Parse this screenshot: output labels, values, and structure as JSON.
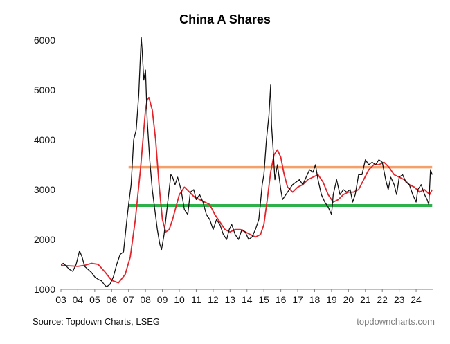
{
  "chart_data": {
    "type": "line",
    "title": "China A Shares",
    "source": "Source: Topdown Charts, LSEG",
    "brand": "topdowncharts.com",
    "xlabel": "",
    "ylabel": "",
    "xlim": [
      2003.0,
      2024.98
    ],
    "ylim": [
      1000,
      6000
    ],
    "yticks": [
      1000,
      2000,
      3000,
      4000,
      5000,
      6000
    ],
    "xtick_labels": [
      "03",
      "04",
      "05",
      "06",
      "07",
      "08",
      "09",
      "10",
      "11",
      "12",
      "13",
      "14",
      "15",
      "16",
      "17",
      "18",
      "19",
      "20",
      "21",
      "22",
      "23",
      "24"
    ],
    "xtick_values": [
      2003,
      2004,
      2005,
      2006,
      2007,
      2008,
      2009,
      2010,
      2011,
      2012,
      2013,
      2014,
      2015,
      2016,
      2017,
      2018,
      2019,
      2020,
      2021,
      2022,
      2023,
      2024
    ],
    "grid": false,
    "legend": "none",
    "series": [
      {
        "color": "#111111",
        "x": [
          2003.0,
          2003.15,
          2003.3,
          2003.5,
          2003.7,
          2003.9,
          2004.1,
          2004.25,
          2004.4,
          2004.6,
          2004.8,
          2005.0,
          2005.2,
          2005.4,
          2005.55,
          2005.7,
          2005.9,
          2006.1,
          2006.3,
          2006.5,
          2006.7,
          2006.9,
          2007.0,
          2007.15,
          2007.3,
          2007.45,
          2007.6,
          2007.7,
          2007.75,
          2007.8,
          2007.9,
          2008.0,
          2008.1,
          2008.25,
          2008.4,
          2008.55,
          2008.7,
          2008.85,
          2008.95,
          2009.1,
          2009.3,
          2009.5,
          2009.6,
          2009.75,
          2009.9,
          2010.1,
          2010.3,
          2010.5,
          2010.65,
          2010.85,
          2011.0,
          2011.2,
          2011.4,
          2011.6,
          2011.8,
          2012.0,
          2012.2,
          2012.4,
          2012.6,
          2012.8,
          2012.95,
          2013.1,
          2013.3,
          2013.5,
          2013.7,
          2013.9,
          2014.1,
          2014.3,
          2014.5,
          2014.7,
          2014.9,
          2015.0,
          2015.15,
          2015.3,
          2015.4,
          2015.45,
          2015.55,
          2015.65,
          2015.8,
          2016.0,
          2016.1,
          2016.3,
          2016.5,
          2016.7,
          2016.9,
          2017.1,
          2017.3,
          2017.5,
          2017.7,
          2017.9,
          2018.05,
          2018.2,
          2018.4,
          2018.6,
          2018.8,
          2019.0,
          2019.1,
          2019.3,
          2019.5,
          2019.7,
          2019.9,
          2020.1,
          2020.25,
          2020.4,
          2020.6,
          2020.8,
          2021.0,
          2021.2,
          2021.4,
          2021.6,
          2021.8,
          2022.0,
          2022.2,
          2022.35,
          2022.5,
          2022.7,
          2022.85,
          2023.0,
          2023.2,
          2023.4,
          2023.6,
          2023.8,
          2024.0,
          2024.1,
          2024.3,
          2024.5,
          2024.65,
          2024.75,
          2024.85,
          2024.95
        ],
        "values": [
          1500,
          1520,
          1470,
          1400,
          1360,
          1500,
          1770,
          1650,
          1460,
          1400,
          1340,
          1250,
          1200,
          1170,
          1100,
          1050,
          1100,
          1250,
          1500,
          1700,
          1750,
          2400,
          2700,
          3100,
          4000,
          4200,
          4900,
          5700,
          6050,
          5800,
          5200,
          5400,
          4400,
          3600,
          3000,
          2600,
          2200,
          1900,
          1800,
          2100,
          2700,
          3300,
          3250,
          3100,
          3250,
          3000,
          2600,
          2500,
          2950,
          3000,
          2800,
          2900,
          2750,
          2500,
          2400,
          2200,
          2400,
          2300,
          2100,
          2000,
          2200,
          2300,
          2100,
          2000,
          2200,
          2150,
          2000,
          2050,
          2200,
          2400,
          3100,
          3300,
          4000,
          4500,
          5100,
          4300,
          3800,
          3200,
          3500,
          3000,
          2800,
          2900,
          3000,
          3100,
          3150,
          3200,
          3100,
          3250,
          3400,
          3350,
          3500,
          3200,
          2900,
          2750,
          2650,
          2500,
          2900,
          3200,
          2900,
          3000,
          2950,
          3000,
          2750,
          2900,
          3300,
          3300,
          3600,
          3500,
          3550,
          3500,
          3600,
          3550,
          3200,
          3000,
          3250,
          3100,
          2900,
          3250,
          3300,
          3150,
          3100,
          2900,
          2750,
          3000,
          3100,
          2900,
          2800,
          2700,
          3400,
          3300
        ]
      },
      {
        "color": "#e3242b",
        "x": [
          2003.0,
          2003.5,
          2004.0,
          2004.4,
          2004.8,
          2005.2,
          2005.6,
          2006.0,
          2006.4,
          2006.8,
          2007.1,
          2007.4,
          2007.7,
          2007.9,
          2008.0,
          2008.1,
          2008.2,
          2008.4,
          2008.6,
          2008.8,
          2009.0,
          2009.2,
          2009.4,
          2009.6,
          2009.8,
          2010.0,
          2010.3,
          2010.6,
          2010.9,
          2011.2,
          2011.5,
          2011.8,
          2012.1,
          2012.4,
          2012.7,
          2013.0,
          2013.3,
          2013.6,
          2013.9,
          2014.2,
          2014.5,
          2014.8,
          2015.0,
          2015.2,
          2015.4,
          2015.6,
          2015.8,
          2016.0,
          2016.2,
          2016.4,
          2016.7,
          2017.0,
          2017.3,
          2017.6,
          2017.9,
          2018.2,
          2018.5,
          2018.8,
          2019.1,
          2019.4,
          2019.7,
          2020.0,
          2020.3,
          2020.6,
          2020.9,
          2021.2,
          2021.5,
          2021.8,
          2022.1,
          2022.4,
          2022.7,
          2023.0,
          2023.3,
          2023.6,
          2023.9,
          2024.2,
          2024.5,
          2024.8,
          2024.95
        ],
        "values": [
          1480,
          1470,
          1460,
          1480,
          1520,
          1500,
          1350,
          1180,
          1130,
          1300,
          1650,
          2400,
          3400,
          4200,
          4600,
          4800,
          4850,
          4600,
          4000,
          3100,
          2400,
          2150,
          2200,
          2400,
          2650,
          2900,
          3050,
          2950,
          2850,
          2800,
          2750,
          2700,
          2500,
          2350,
          2200,
          2150,
          2200,
          2200,
          2150,
          2100,
          2050,
          2100,
          2300,
          2800,
          3350,
          3700,
          3800,
          3650,
          3300,
          3050,
          2950,
          3050,
          3100,
          3200,
          3250,
          3300,
          3150,
          2900,
          2750,
          2800,
          2900,
          2950,
          2950,
          3000,
          3200,
          3400,
          3500,
          3500,
          3550,
          3450,
          3300,
          3250,
          3200,
          3100,
          3050,
          2950,
          3000,
          2900,
          3000
        ]
      },
      {
        "color": "#f4a06a",
        "x": [
          2007.0,
          2024.95
        ],
        "values": [
          3450,
          3450
        ]
      },
      {
        "color": "#2eb04a",
        "x": [
          2007.0,
          2024.95
        ],
        "values": [
          2680,
          2680
        ]
      }
    ]
  }
}
